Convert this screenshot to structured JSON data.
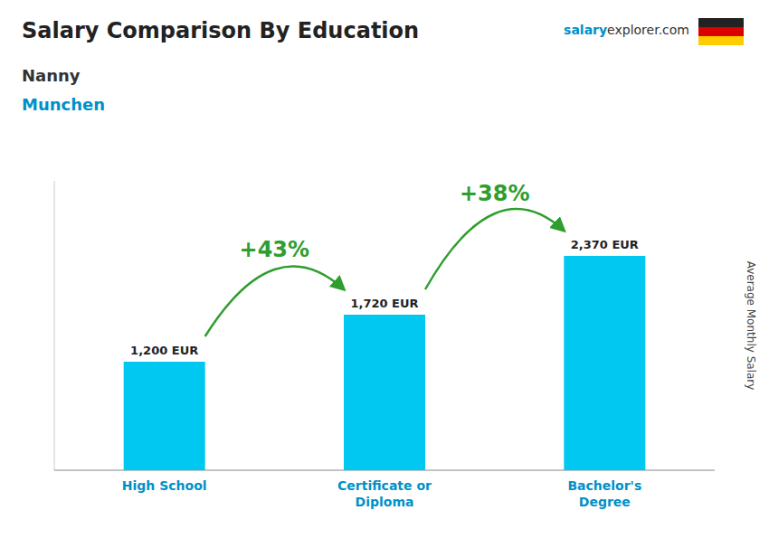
{
  "chart_data": {
    "type": "bar",
    "title": "Salary Comparison By Education",
    "subtitle": [
      "Nanny",
      "Munchen"
    ],
    "brand": [
      "salary",
      "explorer",
      ".com"
    ],
    "ylabel": "Average Monthly Salary",
    "categories": [
      "High School",
      "Certificate or\nDiploma",
      "Bachelor's\nDegree"
    ],
    "values": [
      1200,
      1720,
      2370
    ],
    "value_labels": [
      "1,200 EUR",
      "1,720 EUR",
      "2,370 EUR"
    ],
    "data_labels": true,
    "annotations": [
      "+43%",
      "+38%"
    ],
    "color": "#00C8F0",
    "ylim": [
      0,
      3200
    ],
    "tick_labels": "x",
    "grid": false
  }
}
